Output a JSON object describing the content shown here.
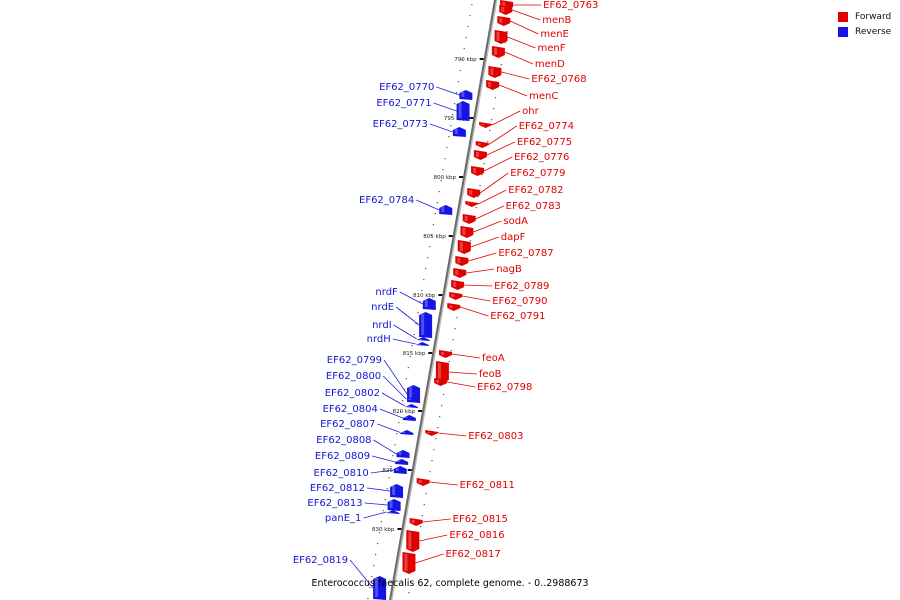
{
  "caption": "Enterococcus faecalis 62, complete genome. - 0..2988673",
  "legend": {
    "items": [
      {
        "label": "Forward",
        "color": "#e00000"
      },
      {
        "label": "Reverse",
        "color": "#1414e6"
      }
    ]
  },
  "ticks": [
    "790 kbp",
    "795 kbp",
    "800 kbp",
    "805 kbp",
    "810 kbp",
    "815 kbp",
    "820 kbp",
    "825 kbp",
    "830 kbp"
  ],
  "forward_genes": [
    "EF62_0763",
    "menB",
    "menE",
    "menF",
    "menD",
    "EF62_0768",
    "menC",
    "ohr",
    "EF62_0774",
    "EF62_0775",
    "EF62_0776",
    "EF62_0779",
    "EF62_0782",
    "EF62_0783",
    "sodA",
    "dapF",
    "EF62_0787",
    "nagB",
    "EF62_0789",
    "EF62_0790",
    "EF62_0791",
    "feoA",
    "feoB",
    "EF62_0798",
    "EF62_0803",
    "EF62_0811",
    "EF62_0815",
    "EF62_0816",
    "EF62_0817"
  ],
  "reverse_genes": [
    "EF62_0770",
    "EF62_0771",
    "EF62_0773",
    "EF62_0784",
    "nrdF",
    "nrdE",
    "nrdI",
    "nrdH",
    "EF62_0799",
    "EF62_0800",
    "EF62_0802",
    "EF62_0804",
    "EF62_0807",
    "EF62_0808",
    "EF62_0809",
    "EF62_0810",
    "EF62_0812",
    "EF62_0813",
    "panE_1",
    "EF62_0819"
  ]
}
